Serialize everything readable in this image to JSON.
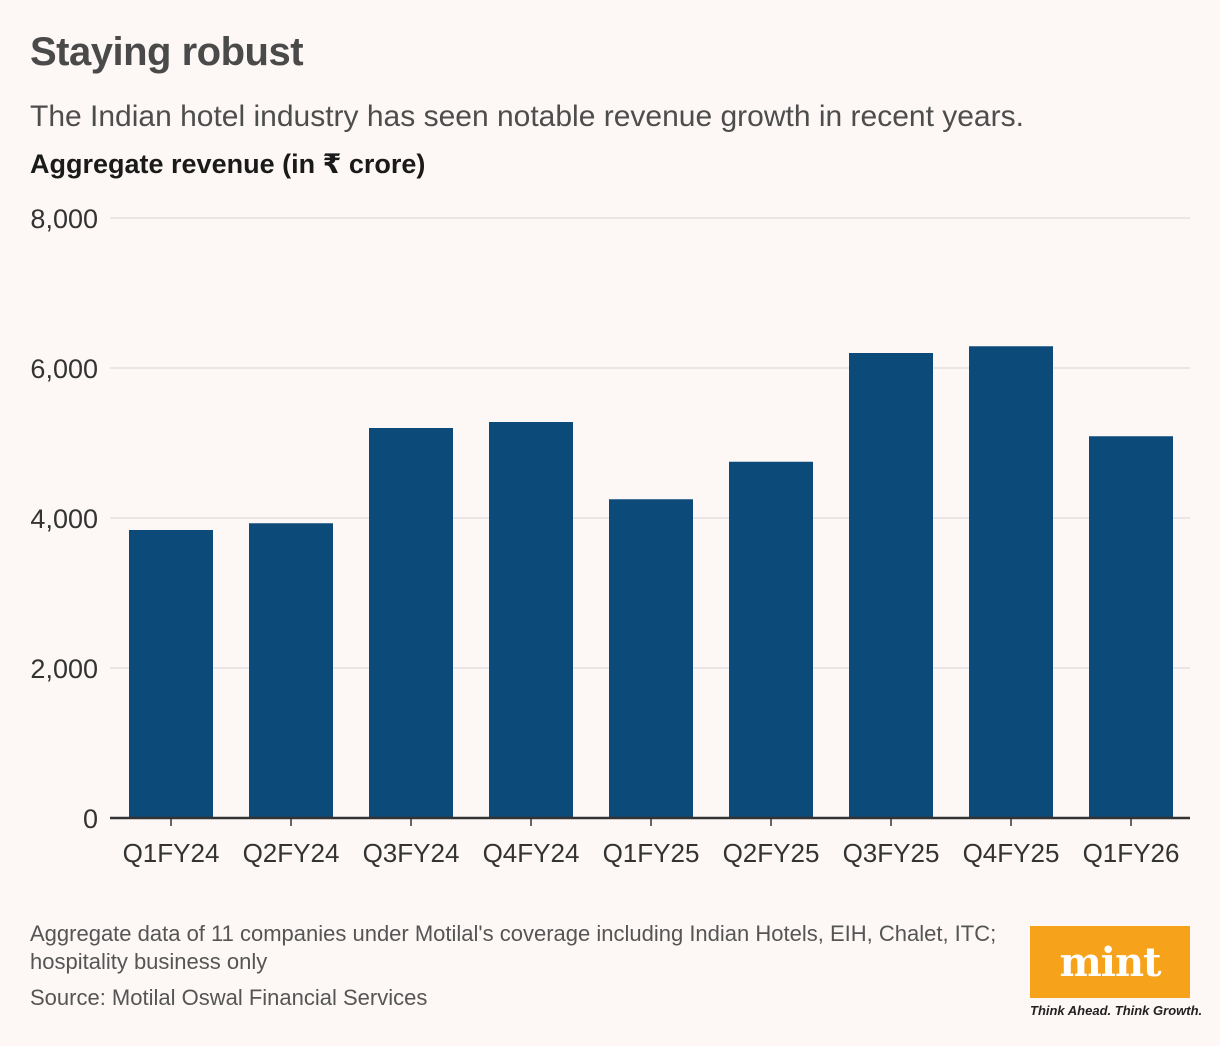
{
  "header": {
    "title": "Staying robust",
    "subtitle": "The Indian hotel industry has seen notable revenue growth in recent years.",
    "unit_label": "Aggregate revenue (in ₹ crore)"
  },
  "chart_data": {
    "type": "bar",
    "title": "Staying robust",
    "subtitle": "The Indian hotel industry has seen notable revenue growth in recent years.",
    "ylabel": "Aggregate revenue (in ₹ crore)",
    "xlabel": "",
    "categories": [
      "Q1FY24",
      "Q2FY24",
      "Q3FY24",
      "Q4FY24",
      "Q1FY25",
      "Q2FY25",
      "Q3FY25",
      "Q4FY25",
      "Q1FY26"
    ],
    "values": [
      3840,
      3930,
      5200,
      5280,
      4250,
      4750,
      6200,
      6290,
      5090
    ],
    "ylim": [
      0,
      8000
    ],
    "yticks": [
      0,
      2000,
      4000,
      6000,
      8000
    ],
    "ytick_labels": [
      "0",
      "2,000",
      "4,000",
      "6,000",
      "8,000"
    ],
    "grid": true,
    "bar_color": "#0c4a7a"
  },
  "footer": {
    "note": "Aggregate data of 11 companies under Motilal's coverage including Indian Hotels, EIH, Chalet, ITC; hospitality business only",
    "source": "Source: Motilal Oswal Financial Services"
  },
  "logo": {
    "text": "mint",
    "tagline": "Think Ahead. Think Growth.",
    "color": "#f7a21b"
  }
}
